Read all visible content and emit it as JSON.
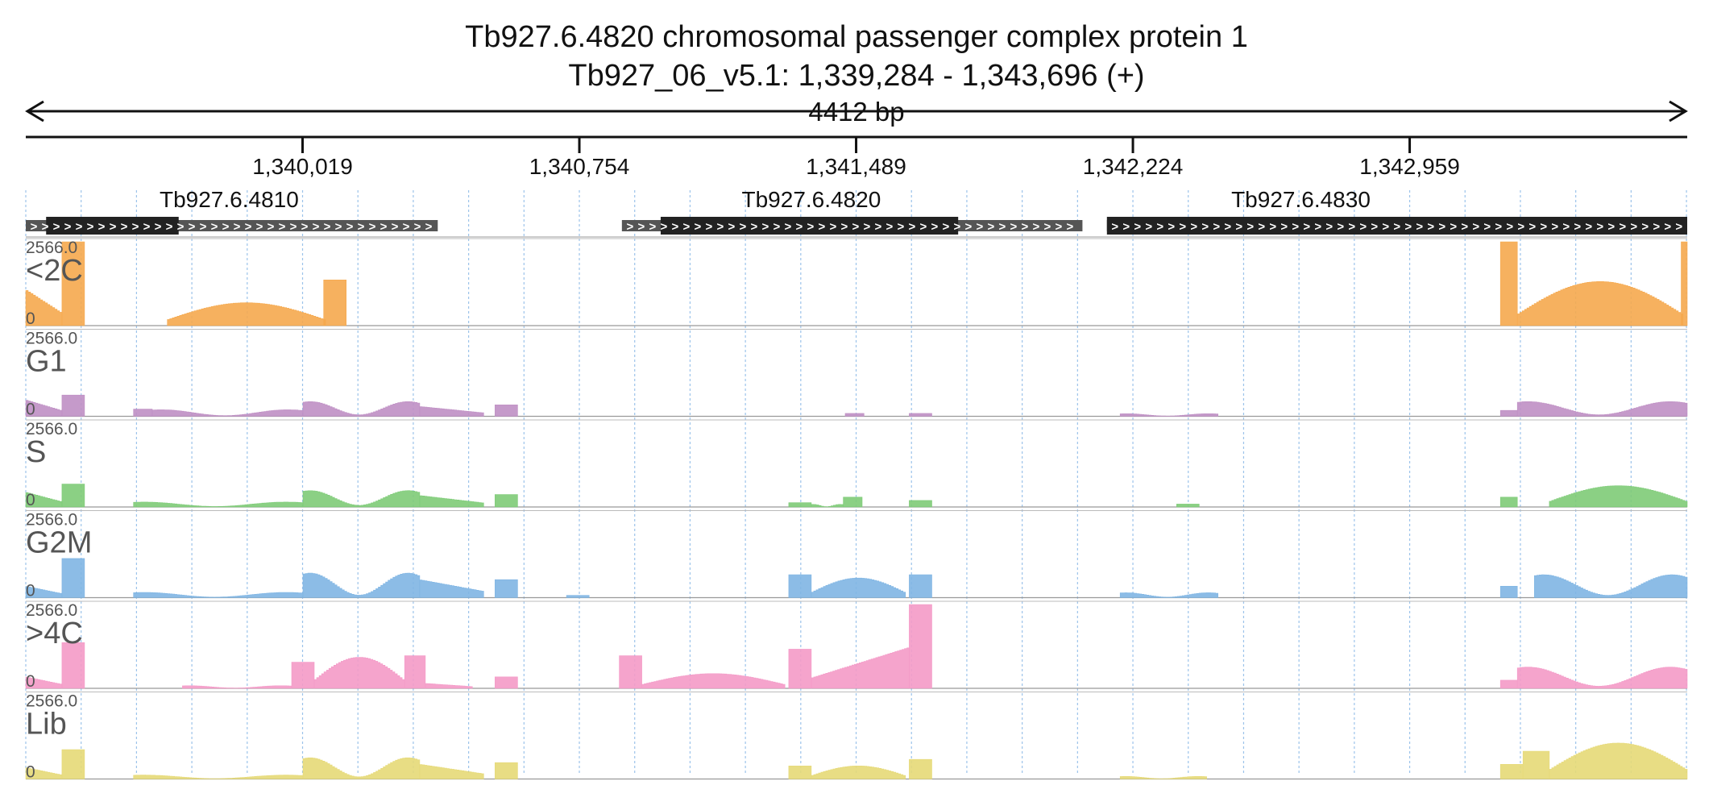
{
  "title": {
    "line1": "Tb927.6.4820  chromosomal passenger complex protein 1",
    "line2": "Tb927_06_v5.1: 1,339,284 - 1,343,696 (+)"
  },
  "span_label": "4412 bp",
  "chart_data": {
    "type": "area",
    "region": {
      "chrom": "Tb927_06_v5.1",
      "start": 1339284,
      "end": 1343696,
      "strand": "+"
    },
    "x_ticks": [
      {
        "pos": 1340019,
        "label": "1,340,019"
      },
      {
        "pos": 1340754,
        "label": "1,340,754"
      },
      {
        "pos": 1341489,
        "label": "1,341,489"
      },
      {
        "pos": 1342224,
        "label": "1,342,224"
      },
      {
        "pos": 1342959,
        "label": "1,342,959"
      }
    ],
    "genes": [
      {
        "name": "Tb927.6.4810",
        "utr_start": 1339284,
        "utr_end": 1340378,
        "cds_start": 1339338,
        "cds_end": 1339690,
        "label_pos": 1339824
      },
      {
        "name": "Tb927.6.4820",
        "utr_start": 1340867,
        "utr_end": 1342090,
        "cds_start": 1340970,
        "cds_end": 1341760,
        "label_pos": 1341370
      },
      {
        "name": "Tb927.6.4830",
        "utr_start": 1342155,
        "utr_end": 1343696,
        "cds_start": 1342155,
        "cds_end": 1343696,
        "label_pos": 1342670
      }
    ],
    "ylim": [
      0,
      2566.0
    ],
    "ymax_label": "2566.0",
    "ymin_label": "0",
    "grid": "dashed vertical",
    "series": [
      {
        "name": "<2C",
        "color": "#f5a94e",
        "segments": [
          {
            "start": 1339284,
            "end": 1339380,
            "shape": "ramp_down",
            "max": 1100
          },
          {
            "start": 1339380,
            "end": 1339440,
            "shape": "flat",
            "max": 2566
          },
          {
            "start": 1339660,
            "end": 1340080,
            "shape": "hump",
            "max": 700
          },
          {
            "start": 1340075,
            "end": 1340135,
            "shape": "flat",
            "max": 1400
          },
          {
            "start": 1343200,
            "end": 1343245,
            "shape": "flat",
            "max": 2566
          },
          {
            "start": 1343245,
            "end": 1343685,
            "shape": "hump",
            "max": 1350
          },
          {
            "start": 1343680,
            "end": 1343696,
            "shape": "flat",
            "max": 2566
          }
        ]
      },
      {
        "name": "G1",
        "color": "#bf8fc4",
        "segments": [
          {
            "start": 1339284,
            "end": 1339380,
            "shape": "ramp_down",
            "max": 500
          },
          {
            "start": 1339380,
            "end": 1339440,
            "shape": "flat",
            "max": 650
          },
          {
            "start": 1339570,
            "end": 1339620,
            "shape": "flat",
            "max": 220
          },
          {
            "start": 1339620,
            "end": 1340020,
            "shape": "wave",
            "max": 200
          },
          {
            "start": 1340020,
            "end": 1340330,
            "shape": "wave",
            "max": 450
          },
          {
            "start": 1340330,
            "end": 1340500,
            "shape": "ramp_down",
            "max": 300
          },
          {
            "start": 1340530,
            "end": 1340590,
            "shape": "flat",
            "max": 350
          },
          {
            "start": 1341460,
            "end": 1341510,
            "shape": "flat",
            "max": 90
          },
          {
            "start": 1341630,
            "end": 1341690,
            "shape": "flat",
            "max": 90
          },
          {
            "start": 1342190,
            "end": 1342450,
            "shape": "wave",
            "max": 80
          },
          {
            "start": 1343200,
            "end": 1343245,
            "shape": "flat",
            "max": 180
          },
          {
            "start": 1343245,
            "end": 1343696,
            "shape": "wave",
            "max": 450
          }
        ]
      },
      {
        "name": "S",
        "color": "#7ecb77",
        "segments": [
          {
            "start": 1339284,
            "end": 1339380,
            "shape": "ramp_down",
            "max": 450
          },
          {
            "start": 1339380,
            "end": 1339440,
            "shape": "flat",
            "max": 700
          },
          {
            "start": 1339570,
            "end": 1340020,
            "shape": "wave",
            "max": 150
          },
          {
            "start": 1340020,
            "end": 1340330,
            "shape": "wave",
            "max": 500
          },
          {
            "start": 1340330,
            "end": 1340500,
            "shape": "ramp_down",
            "max": 350
          },
          {
            "start": 1340530,
            "end": 1340590,
            "shape": "flat",
            "max": 380
          },
          {
            "start": 1341310,
            "end": 1341370,
            "shape": "flat",
            "max": 130
          },
          {
            "start": 1341370,
            "end": 1341455,
            "shape": "wave",
            "max": 80
          },
          {
            "start": 1341455,
            "end": 1341505,
            "shape": "flat",
            "max": 300
          },
          {
            "start": 1341630,
            "end": 1341690,
            "shape": "flat",
            "max": 200
          },
          {
            "start": 1342340,
            "end": 1342400,
            "shape": "flat",
            "max": 90
          },
          {
            "start": 1343200,
            "end": 1343245,
            "shape": "flat",
            "max": 300
          },
          {
            "start": 1343330,
            "end": 1343696,
            "shape": "hump",
            "max": 650
          }
        ]
      },
      {
        "name": "G2M",
        "color": "#7fb5e3",
        "segments": [
          {
            "start": 1339284,
            "end": 1339380,
            "shape": "ramp_down",
            "max": 350
          },
          {
            "start": 1339380,
            "end": 1339440,
            "shape": "flat",
            "max": 1200
          },
          {
            "start": 1339570,
            "end": 1340020,
            "shape": "wave",
            "max": 160
          },
          {
            "start": 1340020,
            "end": 1340330,
            "shape": "wave",
            "max": 750
          },
          {
            "start": 1340330,
            "end": 1340500,
            "shape": "ramp_down",
            "max": 550
          },
          {
            "start": 1340530,
            "end": 1340590,
            "shape": "flat",
            "max": 550
          },
          {
            "start": 1340720,
            "end": 1340780,
            "shape": "flat",
            "max": 70
          },
          {
            "start": 1341310,
            "end": 1341370,
            "shape": "flat",
            "max": 700
          },
          {
            "start": 1341370,
            "end": 1341620,
            "shape": "hump",
            "max": 600
          },
          {
            "start": 1341630,
            "end": 1341690,
            "shape": "flat",
            "max": 700
          },
          {
            "start": 1342190,
            "end": 1342450,
            "shape": "wave",
            "max": 150
          },
          {
            "start": 1343200,
            "end": 1343245,
            "shape": "flat",
            "max": 350
          },
          {
            "start": 1343290,
            "end": 1343696,
            "shape": "wave",
            "max": 700
          }
        ]
      },
      {
        "name": ">4C",
        "color": "#f49ac7",
        "segments": [
          {
            "start": 1339284,
            "end": 1339380,
            "shape": "ramp_down",
            "max": 350
          },
          {
            "start": 1339380,
            "end": 1339440,
            "shape": "flat",
            "max": 1400
          },
          {
            "start": 1339700,
            "end": 1339990,
            "shape": "wave",
            "max": 80
          },
          {
            "start": 1339990,
            "end": 1340050,
            "shape": "flat",
            "max": 800
          },
          {
            "start": 1340050,
            "end": 1340290,
            "shape": "hump",
            "max": 950
          },
          {
            "start": 1340290,
            "end": 1340345,
            "shape": "flat",
            "max": 1000
          },
          {
            "start": 1340345,
            "end": 1340470,
            "shape": "ramp_down",
            "max": 150
          },
          {
            "start": 1340530,
            "end": 1340590,
            "shape": "flat",
            "max": 350
          },
          {
            "start": 1340860,
            "end": 1340920,
            "shape": "flat",
            "max": 1000
          },
          {
            "start": 1340920,
            "end": 1341300,
            "shape": "hump",
            "max": 450
          },
          {
            "start": 1341310,
            "end": 1341370,
            "shape": "flat",
            "max": 1200
          },
          {
            "start": 1341370,
            "end": 1341630,
            "shape": "ramp_up",
            "max": 1250
          },
          {
            "start": 1341630,
            "end": 1341690,
            "shape": "flat",
            "max": 2566
          },
          {
            "start": 1343200,
            "end": 1343245,
            "shape": "flat",
            "max": 250
          },
          {
            "start": 1343245,
            "end": 1343696,
            "shape": "wave",
            "max": 650
          }
        ]
      },
      {
        "name": "Lib",
        "color": "#e6d977",
        "segments": [
          {
            "start": 1339284,
            "end": 1339380,
            "shape": "ramp_down",
            "max": 350
          },
          {
            "start": 1339380,
            "end": 1339440,
            "shape": "flat",
            "max": 900
          },
          {
            "start": 1339570,
            "end": 1340020,
            "shape": "wave",
            "max": 120
          },
          {
            "start": 1340020,
            "end": 1340330,
            "shape": "wave",
            "max": 650
          },
          {
            "start": 1340330,
            "end": 1340500,
            "shape": "ramp_down",
            "max": 450
          },
          {
            "start": 1340530,
            "end": 1340590,
            "shape": "flat",
            "max": 500
          },
          {
            "start": 1341310,
            "end": 1341370,
            "shape": "flat",
            "max": 400
          },
          {
            "start": 1341370,
            "end": 1341620,
            "shape": "hump",
            "max": 400
          },
          {
            "start": 1341630,
            "end": 1341690,
            "shape": "flat",
            "max": 600
          },
          {
            "start": 1342190,
            "end": 1342420,
            "shape": "wave",
            "max": 80
          },
          {
            "start": 1343200,
            "end": 1343260,
            "shape": "flat",
            "max": 450
          },
          {
            "start": 1343260,
            "end": 1343330,
            "shape": "flat",
            "max": 850
          },
          {
            "start": 1343330,
            "end": 1343696,
            "shape": "hump",
            "max": 1100
          }
        ]
      }
    ]
  }
}
